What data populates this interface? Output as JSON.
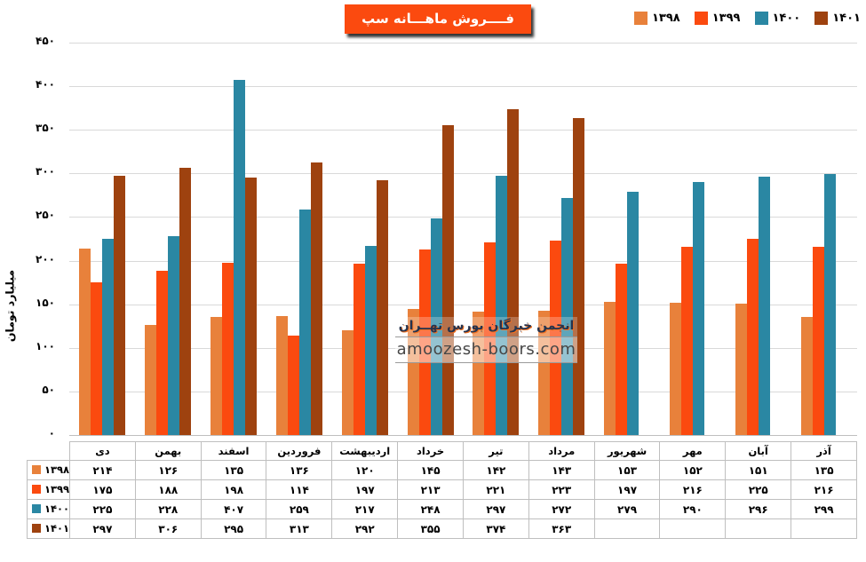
{
  "title": {
    "text": "فــــروش ماهـــانه سپ",
    "bg_color": "#FB4A0F",
    "text_color": "#FFFFFF"
  },
  "legend": {
    "items": [
      {
        "id": "1398",
        "label": "۱۳۹۸",
        "color": "#E8813B"
      },
      {
        "id": "1399",
        "label": "۱۳۹۹",
        "color": "#FB4A0F"
      },
      {
        "id": "1400",
        "label": "۱۴۰۰",
        "color": "#2A87A3"
      },
      {
        "id": "1401",
        "label": "۱۴۰۱",
        "color": "#9E420F"
      }
    ]
  },
  "watermark": {
    "line1": "انجمن خبرگان بورس تهــران",
    "line2": "amoozesh-boors.com"
  },
  "y_axis": {
    "title": "میلیارد تومان",
    "ticks": [
      "۴۵۰",
      "۴۰۰",
      "۳۵۰",
      "۳۰۰",
      "۲۵۰",
      "۲۰۰",
      "۱۵۰",
      "۱۰۰",
      "۵۰",
      "۰"
    ]
  },
  "chart_data": {
    "type": "bar",
    "title": "فــــروش ماهـــانه سپ",
    "xlabel": "",
    "ylabel": "میلیارد تومان",
    "ylim": [
      0,
      450
    ],
    "grid": true,
    "legend_position": "top-right",
    "categories": [
      "دی",
      "بهمن",
      "اسفند",
      "فروردین",
      "اردیبهشت",
      "خرداد",
      "تیر",
      "مرداد",
      "شهریور",
      "مهر",
      "آبان",
      "آذر"
    ],
    "series": [
      {
        "id": "1398",
        "name": "۱۳۹۸",
        "color": "#E8813B",
        "values": [
          214,
          126,
          135,
          136,
          120,
          145,
          142,
          143,
          153,
          152,
          151,
          135
        ]
      },
      {
        "id": "1399",
        "name": "۱۳۹۹",
        "color": "#FB4A0F",
        "values": [
          175,
          188,
          198,
          114,
          197,
          213,
          221,
          223,
          197,
          216,
          225,
          216
        ]
      },
      {
        "id": "1400",
        "name": "۱۴۰۰",
        "color": "#2A87A3",
        "values": [
          225,
          228,
          407,
          259,
          217,
          248,
          297,
          272,
          279,
          290,
          296,
          299
        ]
      },
      {
        "id": "1401",
        "name": "۱۴۰۱",
        "color": "#9E420F",
        "values": [
          297,
          306,
          295,
          313,
          292,
          355,
          374,
          363,
          null,
          null,
          null,
          null
        ]
      }
    ]
  },
  "table": {
    "columns": [
      "دی",
      "بهمن",
      "اسفند",
      "فروردین",
      "اردیبهشت",
      "خرداد",
      "تیر",
      "مرداد",
      "شهریور",
      "مهر",
      "آبان",
      "آذر"
    ],
    "rows": [
      {
        "id": "1398",
        "label": "۱۳۹۸",
        "color": "#E8813B",
        "cells": [
          "۲۱۴",
          "۱۲۶",
          "۱۳۵",
          "۱۳۶",
          "۱۲۰",
          "۱۴۵",
          "۱۴۲",
          "۱۴۳",
          "۱۵۳",
          "۱۵۲",
          "۱۵۱",
          "۱۳۵"
        ]
      },
      {
        "id": "1399",
        "label": "۱۳۹۹",
        "color": "#FB4A0F",
        "cells": [
          "۱۷۵",
          "۱۸۸",
          "۱۹۸",
          "۱۱۴",
          "۱۹۷",
          "۲۱۳",
          "۲۲۱",
          "۲۲۳",
          "۱۹۷",
          "۲۱۶",
          "۲۲۵",
          "۲۱۶"
        ]
      },
      {
        "id": "1400",
        "label": "۱۴۰۰",
        "color": "#2A87A3",
        "cells": [
          "۲۲۵",
          "۲۲۸",
          "۴۰۷",
          "۲۵۹",
          "۲۱۷",
          "۲۴۸",
          "۲۹۷",
          "۲۷۲",
          "۲۷۹",
          "۲۹۰",
          "۲۹۶",
          "۲۹۹"
        ]
      },
      {
        "id": "1401",
        "label": "۱۴۰۱",
        "color": "#9E420F",
        "cells": [
          "۲۹۷",
          "۳۰۶",
          "۲۹۵",
          "۳۱۳",
          "۲۹۲",
          "۳۵۵",
          "۳۷۴",
          "۳۶۳",
          "",
          "",
          "",
          ""
        ]
      }
    ]
  },
  "colors": {
    "grid": "#D9D9D9",
    "axis": "#BFBFBF",
    "table_border": "#BFBFBF",
    "watermark_rule": "#9a9a9a"
  }
}
